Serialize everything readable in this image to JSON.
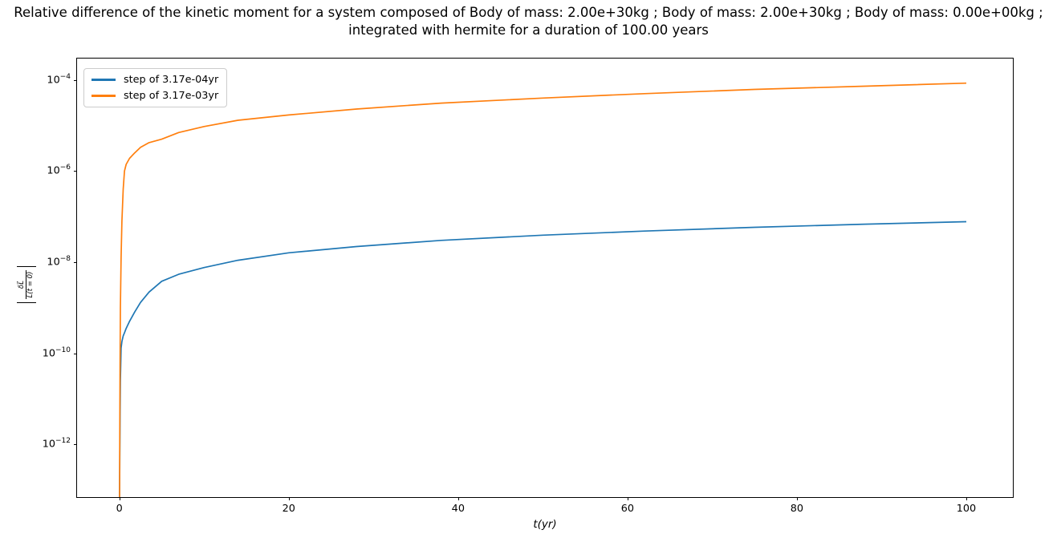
{
  "figure": {
    "title_line1": "Relative difference of the kinetic moment for a system composed of Body of mass: 2.00e+30kg ; Body of mass: 2.00e+30kg ; Body of mass: 0.00e+00kg ;",
    "title_line2": "integrated with hermite for a duration of 100.00 years"
  },
  "chart_data": {
    "type": "line",
    "title": "Relative difference of the kinetic moment for a system composed of Body of mass: 2.00e+30kg ; Body of mass: 2.00e+30kg ; Body of mass: 0.00e+00kg ; integrated with hermite for a duration of 100.00 years",
    "xlabel": "t(yr)",
    "ylabel": "|δL⃗ / L⃗(t = 0)|",
    "ylabel_numerator": "δL⃗",
    "ylabel_denominator": "L⃗(t = 0)",
    "yscale": "log",
    "grid": false,
    "legend_position": "upper left",
    "xlim": [
      -5.0,
      105.5
    ],
    "ylim_log10": [
      -13.16,
      -3.53
    ],
    "x_ticks": [
      0,
      20,
      40,
      60,
      80,
      100
    ],
    "y_tick_exponents": [
      -4,
      -6,
      -8,
      -10,
      -12
    ],
    "series": [
      {
        "name": "step of 3.17e-04yr",
        "color": "#1f77b4",
        "points": [
          [
            0.005,
            5e-15
          ],
          [
            0.02,
            7.9e-14
          ],
          [
            0.05,
            6.3e-13
          ],
          [
            0.08,
            4e-12
          ],
          [
            0.12,
            2.5e-11
          ],
          [
            0.2,
            1.3e-10
          ],
          [
            0.3,
            1.8e-10
          ],
          [
            0.45,
            2.4e-10
          ],
          [
            0.6,
            2.8e-10
          ],
          [
            0.8,
            3.5e-10
          ],
          [
            1.2,
            5e-10
          ],
          [
            1.8,
            8e-10
          ],
          [
            2.5,
            1.3e-09
          ],
          [
            3.5,
            2.2e-09
          ],
          [
            5,
            3.8e-09
          ],
          [
            7,
            5.4e-09
          ],
          [
            10,
            7.6e-09
          ],
          [
            14,
            1.1e-08
          ],
          [
            20,
            1.6e-08
          ],
          [
            28,
            2.2e-08
          ],
          [
            38,
            3e-08
          ],
          [
            50,
            3.9e-08
          ],
          [
            62,
            4.8e-08
          ],
          [
            75,
            5.8e-08
          ],
          [
            88,
            6.8e-08
          ],
          [
            100,
            7.7e-08
          ]
        ]
      },
      {
        "name": "step of 3.17e-03yr",
        "color": "#ff7f0e",
        "points": [
          [
            0.005,
            5e-15
          ],
          [
            0.02,
            7.9e-14
          ],
          [
            0.05,
            3.2e-12
          ],
          [
            0.08,
            6.3e-11
          ],
          [
            0.12,
            1e-09
          ],
          [
            0.2,
            1.3e-08
          ],
          [
            0.3,
            7.9e-08
          ],
          [
            0.45,
            4e-07
          ],
          [
            0.6,
            1e-06
          ],
          [
            0.8,
            1.4e-06
          ],
          [
            1.2,
            1.9e-06
          ],
          [
            1.8,
            2.5e-06
          ],
          [
            2.5,
            3.3e-06
          ],
          [
            3.5,
            4.2e-06
          ],
          [
            5,
            5e-06
          ],
          [
            7,
            7e-06
          ],
          [
            10,
            9.5e-06
          ],
          [
            14,
            1.3e-05
          ],
          [
            20,
            1.7e-05
          ],
          [
            28,
            2.3e-05
          ],
          [
            38,
            3.1e-05
          ],
          [
            50,
            4e-05
          ],
          [
            62,
            5e-05
          ],
          [
            75,
            6.2e-05
          ],
          [
            88,
            7.3e-05
          ],
          [
            100,
            8.5e-05
          ]
        ]
      }
    ]
  }
}
